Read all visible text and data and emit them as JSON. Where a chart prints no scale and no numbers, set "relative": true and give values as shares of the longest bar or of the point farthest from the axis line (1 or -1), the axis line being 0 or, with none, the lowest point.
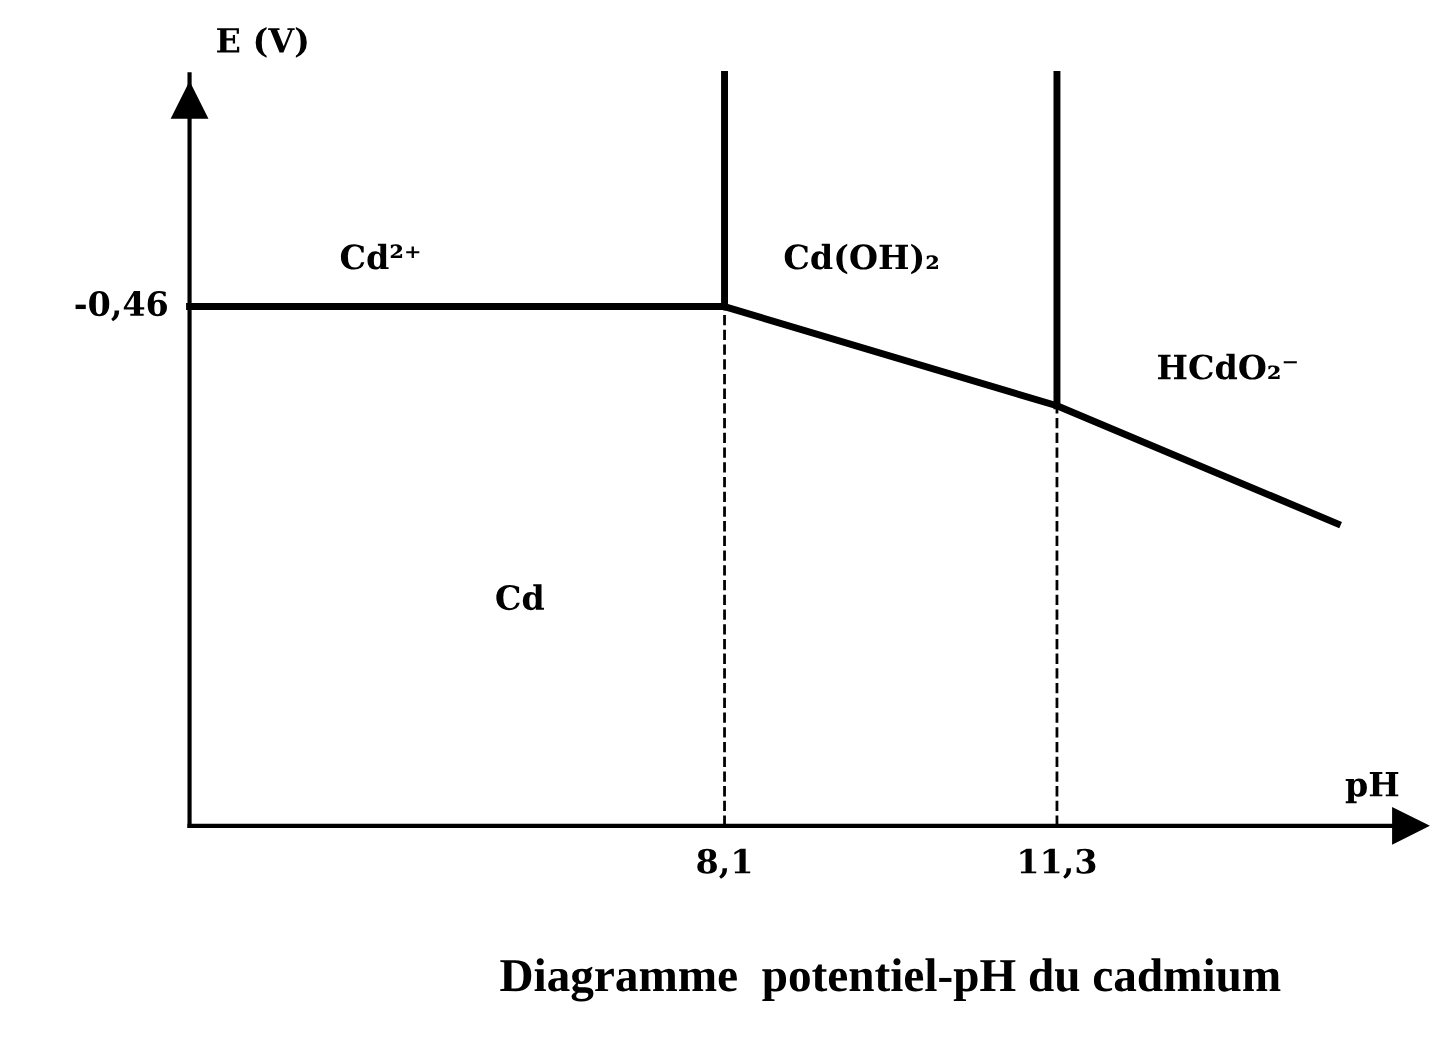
{
  "chart_data": {
    "type": "line",
    "title": "Diagramme  potentiel-pH du cadmium",
    "xlabel": "pH",
    "ylabel": "E (V)",
    "relative": true,
    "tick_labels": "x",
    "xlim": [
      2.95,
      14.7
    ],
    "xticks": [
      {
        "value": 8.1,
        "label": "8,1"
      },
      {
        "value": 11.3,
        "label": "11,3"
      }
    ],
    "series": [
      {
        "color": "#000000",
        "line_style": "solid",
        "x": [
          2.95,
          8.1,
          11.3,
          14.0
        ],
        "values": [
          0.691,
          0.691,
          0.559,
          0.402
        ]
      },
      {
        "color": "#000000",
        "line_style": "solid",
        "x": [
          8.1,
          8.1
        ],
        "values": [
          0.691,
          1.0
        ]
      },
      {
        "color": "#000000",
        "line_style": "solid",
        "x": [
          11.3,
          11.3
        ],
        "values": [
          0.559,
          1.0
        ]
      },
      {
        "color": "#000000",
        "line_style": "dashed",
        "x": [
          8.1,
          8.1
        ],
        "values": [
          0.0,
          0.691
        ]
      },
      {
        "color": "#000000",
        "line_style": "dashed",
        "x": [
          11.3,
          11.3
        ],
        "values": [
          0.0,
          0.559
        ]
      }
    ],
    "annotations": [
      {
        "text": "-0,46",
        "x": 2.95,
        "y": 0.691
      },
      "Cd²⁺",
      "Cd(OH)₂",
      "HCdO₂⁻",
      "Cd"
    ],
    "grid": false,
    "legend": false,
    "marker": "none"
  }
}
